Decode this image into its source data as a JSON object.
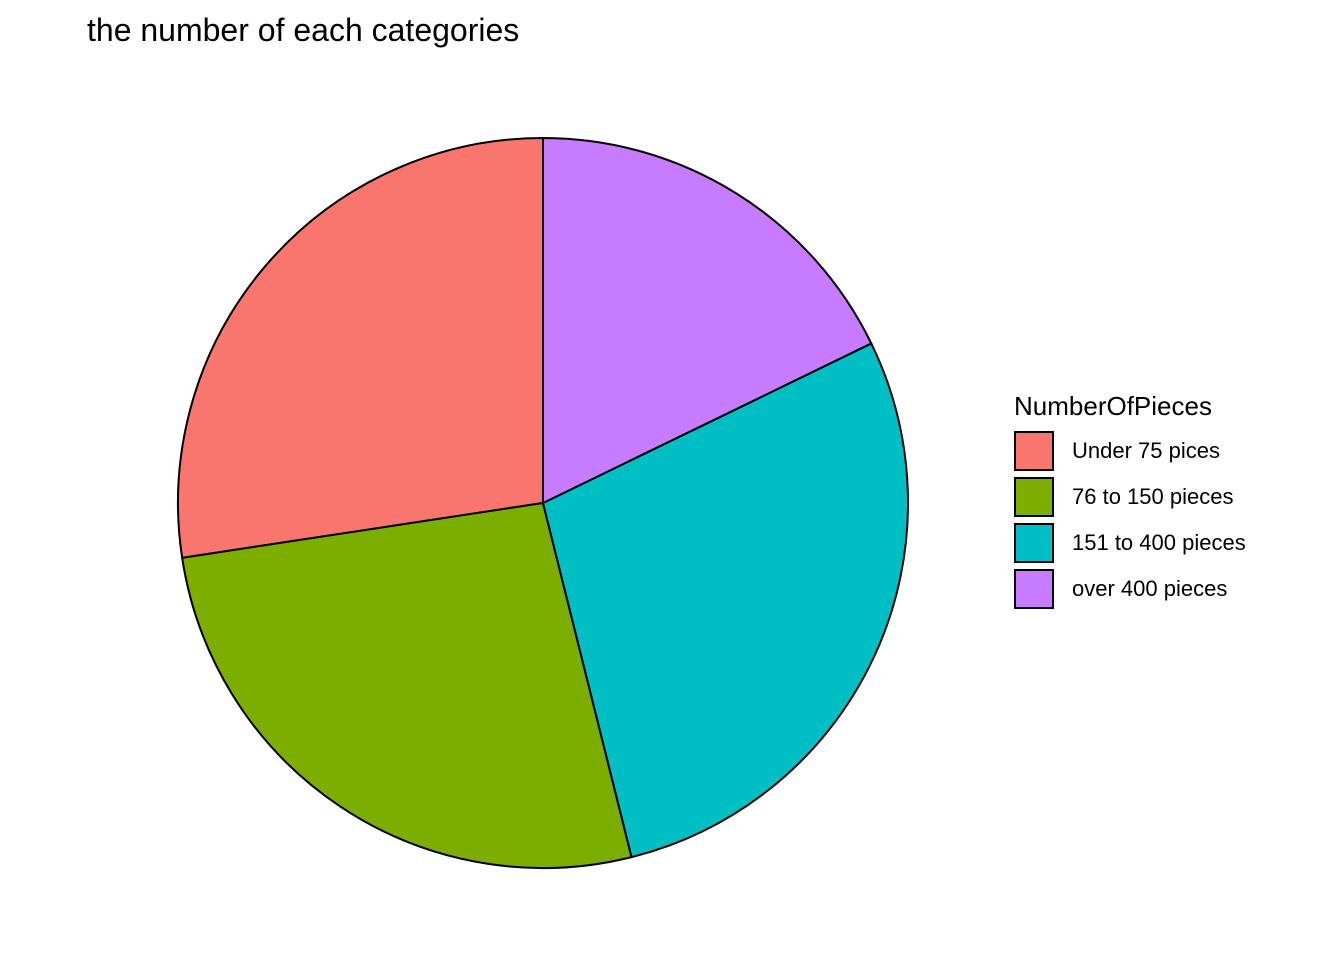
{
  "chart_data": {
    "type": "pie",
    "title": "the number of each categories",
    "start_angle": "12 o'clock",
    "direction": "counter-clockwise",
    "legend": {
      "title": "NumberOfPieces",
      "position": "right"
    },
    "slices": [
      {
        "label": "Under 75 pices",
        "value": 27.4,
        "color": "#F8766D"
      },
      {
        "label": "76 to 150 pieces",
        "value": 26.5,
        "color": "#7CAE00"
      },
      {
        "label": "151 to 400 pieces",
        "value": 28.3,
        "color": "#00BFC4"
      },
      {
        "label": "over 400 pieces",
        "value": 17.8,
        "color": "#C77CFF"
      }
    ],
    "stroke_color": "#000000"
  }
}
